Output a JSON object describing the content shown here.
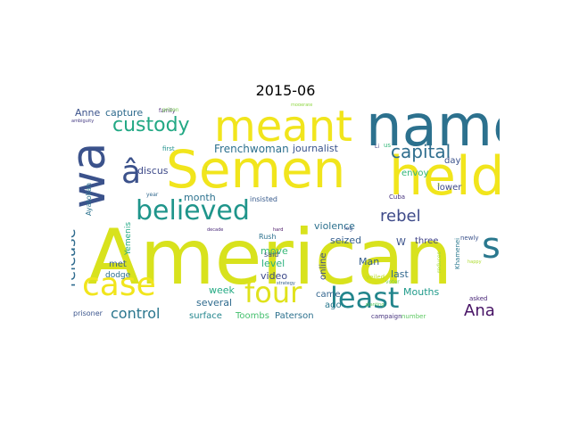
{
  "title": "2015-06",
  "words": [
    {
      "text": "American",
      "color": "#d8e21d"
    },
    {
      "text": "Semen",
      "color": "#f1e51c"
    },
    {
      "text": "name",
      "color": "#2c718e"
    },
    {
      "text": "held",
      "color": "#f1e51c"
    },
    {
      "text": "meant",
      "color": "#f1e51c"
    },
    {
      "text": "wa",
      "color": "#3b528b"
    },
    {
      "text": "case",
      "color": "#f1e51c"
    },
    {
      "text": "four",
      "color": "#e0e21c"
    },
    {
      "text": "least",
      "color": "#22858c"
    },
    {
      "text": "believed",
      "color": "#1f958b"
    },
    {
      "text": "s",
      "color": "#2a788e"
    },
    {
      "text": "â",
      "color": "#3b518b"
    },
    {
      "text": "custody",
      "color": "#22a884"
    },
    {
      "text": "capital",
      "color": "#2f6e8e"
    },
    {
      "text": "rebel",
      "color": "#3e4a89"
    },
    {
      "text": "control",
      "color": "#2a768e"
    },
    {
      "text": "release",
      "color": "#2f6b8e"
    },
    {
      "text": "Ana",
      "color": "#471365"
    },
    {
      "text": "Frenchwoman",
      "color": "#2d708e"
    },
    {
      "text": "journalist",
      "color": "#3a548c"
    },
    {
      "text": "capture",
      "color": "#2f6b8e"
    },
    {
      "text": "Anne",
      "color": "#3b528b"
    },
    {
      "text": "discus",
      "color": "#3e4a89"
    },
    {
      "text": "month",
      "color": "#2c728e"
    },
    {
      "text": "violence",
      "color": "#2d718e"
    },
    {
      "text": "seized",
      "color": "#355f8d"
    },
    {
      "text": "move",
      "color": "#37b878"
    },
    {
      "text": "level",
      "color": "#2cb17e"
    },
    {
      "text": "video",
      "color": "#3e4a89"
    },
    {
      "text": "online",
      "color": "#3e4c8a"
    },
    {
      "text": "Man",
      "color": "#355e8d"
    },
    {
      "text": "last",
      "color": "#31688e"
    },
    {
      "text": "week",
      "color": "#24aa83"
    },
    {
      "text": "several",
      "color": "#2f6b8e"
    },
    {
      "text": "came",
      "color": "#32658e"
    },
    {
      "text": "ago",
      "color": "#2a788e"
    },
    {
      "text": "surface",
      "color": "#24868e"
    },
    {
      "text": "Toombs",
      "color": "#46c06f"
    },
    {
      "text": "Paterson",
      "color": "#2d718e"
    },
    {
      "text": "prisoner",
      "color": "#3a548c"
    },
    {
      "text": "Mouths",
      "color": "#1f9a8a"
    },
    {
      "text": "three",
      "color": "#414487"
    },
    {
      "text": "W",
      "color": "#3b528b"
    },
    {
      "text": "envoy",
      "color": "#32b67a"
    },
    {
      "text": "lower",
      "color": "#3e4a89"
    },
    {
      "text": "day",
      "color": "#3b528b"
    },
    {
      "text": "met",
      "color": "#355f8d"
    },
    {
      "text": "dodge",
      "color": "#2e6f8e"
    },
    {
      "text": "Yemenis",
      "color": "#22a884"
    },
    {
      "text": "Ayatollah",
      "color": "#2c738e"
    },
    {
      "text": "insisted",
      "color": "#375a8c"
    },
    {
      "text": "said",
      "color": "#3e4a89"
    },
    {
      "text": "Rush",
      "color": "#2c718e"
    },
    {
      "text": "campaign",
      "color": "#46337e"
    },
    {
      "text": "number",
      "color": "#5ec962"
    },
    {
      "text": "Cuba",
      "color": "#46337e"
    },
    {
      "text": "Khamenei",
      "color": "#2a788e"
    },
    {
      "text": "newly",
      "color": "#3b528b"
    },
    {
      "text": "asked",
      "color": "#482677"
    },
    {
      "text": "first",
      "color": "#21918c"
    },
    {
      "text": "family",
      "color": "#482677"
    },
    {
      "text": "year",
      "color": "#31688e"
    },
    {
      "text": "prison",
      "color": "#7ad151"
    },
    {
      "text": "ambiguity",
      "color": "#443a83"
    },
    {
      "text": "moderate",
      "color": "#90d743"
    },
    {
      "text": "us",
      "color": "#35b779"
    },
    {
      "text": "Li",
      "color": "#414487"
    },
    {
      "text": "log",
      "color": "#3b528b"
    },
    {
      "text": "veiled",
      "color": "#bddf26"
    },
    {
      "text": "planting",
      "color": "#5ec962"
    },
    {
      "text": "reduces",
      "color": "#a0da39"
    },
    {
      "text": "decade",
      "color": "#482878"
    },
    {
      "text": "hard",
      "color": "#471063"
    },
    {
      "text": "strategy",
      "color": "#35608d"
    },
    {
      "text": "voter",
      "color": "#7ad151"
    },
    {
      "text": "happy",
      "color": "#addc30"
    },
    {
      "text": "L",
      "color": "#bddf26"
    },
    {
      "text": "3",
      "color": "#bddf26"
    }
  ]
}
